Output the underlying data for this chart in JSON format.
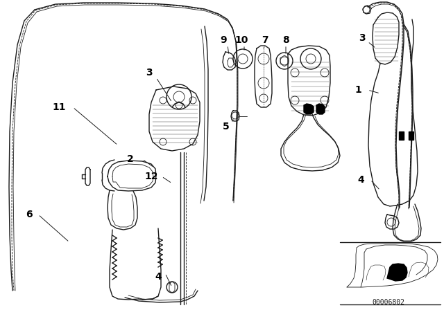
{
  "bg_color": "#ffffff",
  "line_color": "#1a1a1a",
  "label_color": "#000000",
  "diagram_code": "00006802",
  "font_size_labels": 10,
  "font_size_code": 7,
  "figsize": [
    6.4,
    4.48
  ],
  "dpi": 100
}
